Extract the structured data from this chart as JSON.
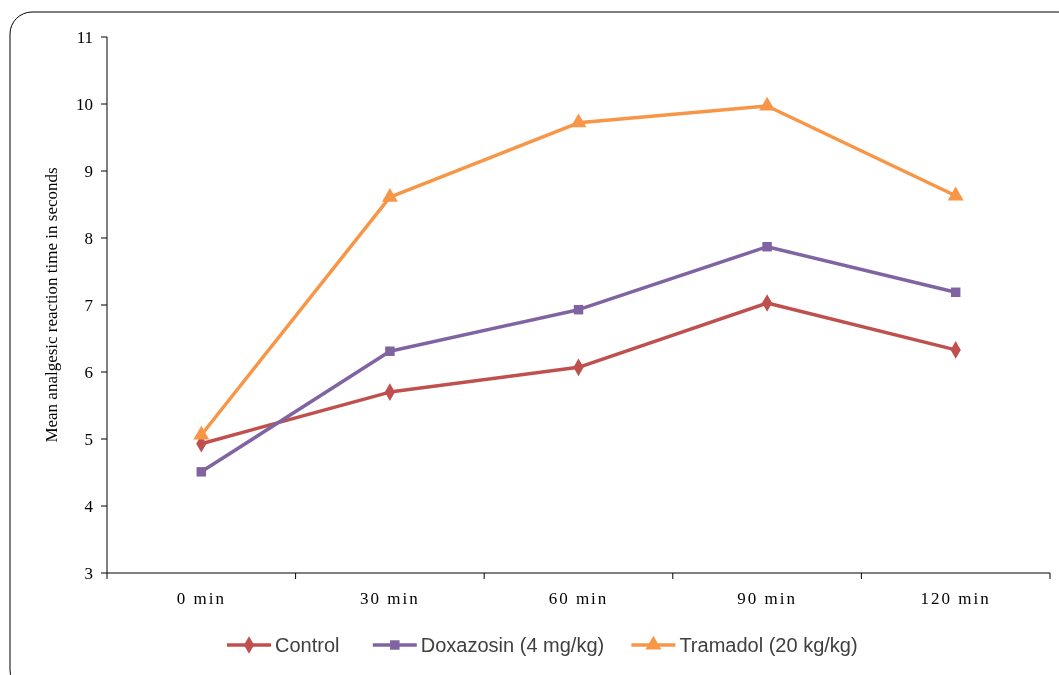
{
  "chart_data": {
    "type": "line",
    "ylabel": "Mean analgesic reaction time in seconds",
    "categories": [
      "0 min",
      "30 min",
      "60 min",
      "90 min",
      "120 min"
    ],
    "series": [
      {
        "name": "Control",
        "color": "#c0504d",
        "marker": "diamond",
        "values": [
          4.93,
          5.7,
          6.07,
          7.03,
          6.33
        ]
      },
      {
        "name": "Doxazosin (4 mg/kg)",
        "color": "#8064a2",
        "marker": "square",
        "values": [
          4.51,
          6.31,
          6.93,
          7.87,
          7.19
        ]
      },
      {
        "name": "Tramadol (20 kg/kg)",
        "color": "#f79646",
        "marker": "triangle",
        "values": [
          5.06,
          8.61,
          9.72,
          9.97,
          8.63
        ]
      }
    ],
    "ylim": [
      3,
      11
    ],
    "yticks": [
      3,
      4,
      5,
      6,
      7,
      8,
      9,
      10,
      11
    ],
    "grid": false,
    "legend": "bottom"
  }
}
